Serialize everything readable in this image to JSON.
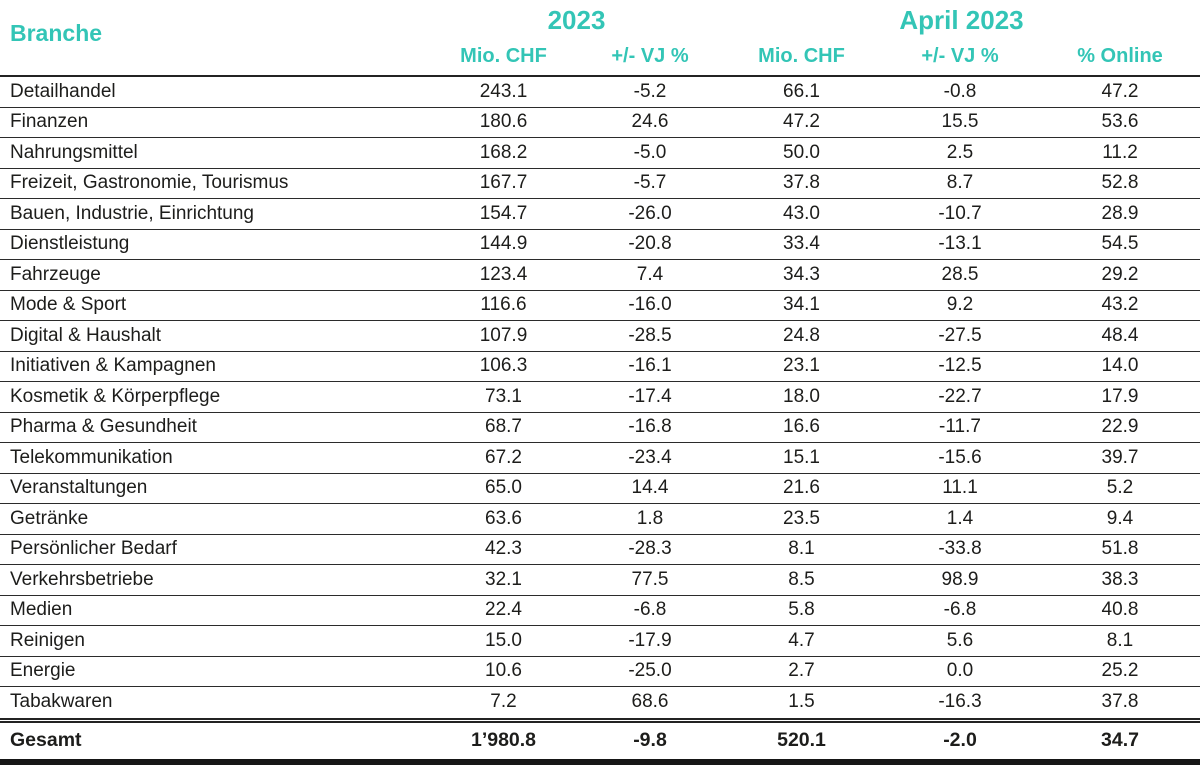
{
  "colors": {
    "accent": "#33C5B6",
    "text": "#1D1D1B",
    "rule": "#2B2B2B",
    "rule-strong": "#232323",
    "rule-heavy": "#161616",
    "background": "#FFFFFF"
  },
  "chart_data": {
    "type": "table",
    "corner_label": "Branche",
    "col_groups": [
      {
        "label": "2023",
        "span": 2
      },
      {
        "label": "April 2023",
        "span": 3
      }
    ],
    "columns": [
      "Mio. CHF",
      "+/- VJ %",
      "Mio. CHF",
      "+/- VJ %",
      "% Online"
    ],
    "rows": [
      {
        "name": "Detailhandel",
        "values": [
          "243.1",
          "-5.2",
          "66.1",
          "-0.8",
          "47.2"
        ]
      },
      {
        "name": "Finanzen",
        "values": [
          "180.6",
          "24.6",
          "47.2",
          "15.5",
          "53.6"
        ]
      },
      {
        "name": "Nahrungsmittel",
        "values": [
          "168.2",
          "-5.0",
          "50.0",
          "2.5",
          "11.2"
        ]
      },
      {
        "name": "Freizeit, Gastronomie, Tourismus",
        "values": [
          "167.7",
          "-5.7",
          "37.8",
          "8.7",
          "52.8"
        ]
      },
      {
        "name": "Bauen, Industrie, Einrichtung",
        "values": [
          "154.7",
          "-26.0",
          "43.0",
          "-10.7",
          "28.9"
        ]
      },
      {
        "name": "Dienstleistung",
        "values": [
          "144.9",
          "-20.8",
          "33.4",
          "-13.1",
          "54.5"
        ]
      },
      {
        "name": "Fahrzeuge",
        "values": [
          "123.4",
          "7.4",
          "34.3",
          "28.5",
          "29.2"
        ]
      },
      {
        "name": "Mode & Sport",
        "values": [
          "116.6",
          "-16.0",
          "34.1",
          "9.2",
          "43.2"
        ]
      },
      {
        "name": "Digital & Haushalt",
        "values": [
          "107.9",
          "-28.5",
          "24.8",
          "-27.5",
          "48.4"
        ]
      },
      {
        "name": "Initiativen & Kampagnen",
        "values": [
          "106.3",
          "-16.1",
          "23.1",
          "-12.5",
          "14.0"
        ]
      },
      {
        "name": "Kosmetik & Körperpflege",
        "values": [
          "73.1",
          "-17.4",
          "18.0",
          "-22.7",
          "17.9"
        ]
      },
      {
        "name": "Pharma & Gesundheit",
        "values": [
          "68.7",
          "-16.8",
          "16.6",
          "-11.7",
          "22.9"
        ]
      },
      {
        "name": "Telekommunikation",
        "values": [
          "67.2",
          "-23.4",
          "15.1",
          "-15.6",
          "39.7"
        ]
      },
      {
        "name": "Veranstaltungen",
        "values": [
          "65.0",
          "14.4",
          "21.6",
          "11.1",
          "5.2"
        ]
      },
      {
        "name": "Getränke",
        "values": [
          "63.6",
          "1.8",
          "23.5",
          "1.4",
          "9.4"
        ]
      },
      {
        "name": "Persönlicher Bedarf",
        "values": [
          "42.3",
          "-28.3",
          "8.1",
          "-33.8",
          "51.8"
        ]
      },
      {
        "name": "Verkehrsbetriebe",
        "values": [
          "32.1",
          "77.5",
          "8.5",
          "98.9",
          "38.3"
        ]
      },
      {
        "name": "Medien",
        "values": [
          "22.4",
          "-6.8",
          "5.8",
          "-6.8",
          "40.8"
        ]
      },
      {
        "name": "Reinigen",
        "values": [
          "15.0",
          "-17.9",
          "4.7",
          "5.6",
          "8.1"
        ]
      },
      {
        "name": "Energie",
        "values": [
          "10.6",
          "-25.0",
          "2.7",
          "0.0",
          "25.2"
        ]
      },
      {
        "name": "Tabakwaren",
        "values": [
          "7.2",
          "68.6",
          "1.5",
          "-16.3",
          "37.8"
        ]
      }
    ],
    "total": {
      "name": "Gesamt",
      "values": [
        "1’980.8",
        "-9.8",
        "520.1",
        "-2.0",
        "34.7"
      ]
    },
    "layout": {
      "grid": "horizontal-rules-only",
      "header_color_role": "accent",
      "total_row_style": "bold, double rule above, heavy rule below"
    }
  }
}
